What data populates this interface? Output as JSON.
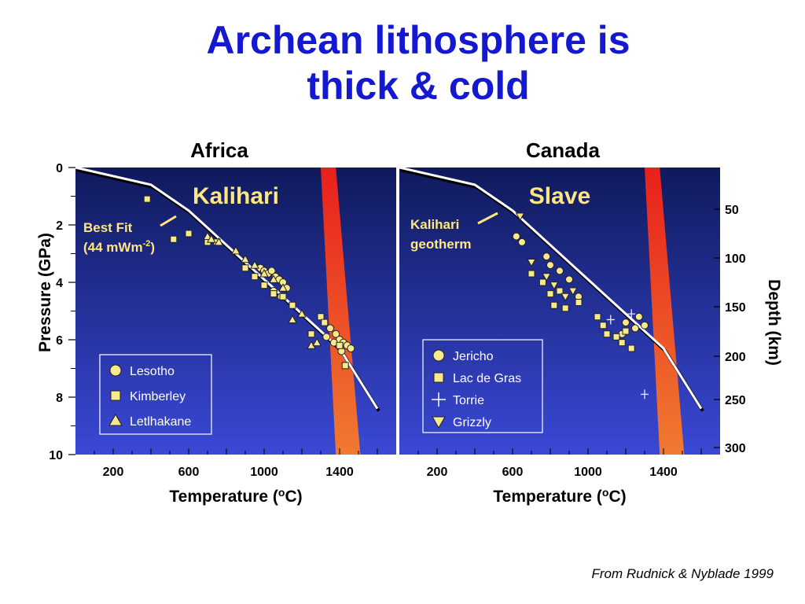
{
  "title_line1": "Archean lithosphere is",
  "title_line2": "thick & cold",
  "citation": "From Rudnick & Nyblade  1999",
  "colors": {
    "title": "#1418d0",
    "panel_top": "#0f1a5c",
    "panel_bottom": "#3a48d6",
    "symbol_fill": "#f7e98e",
    "label_yellow": "#ffe680",
    "melt_band_top": "#e8201c",
    "melt_band_bottom": "#f07a30"
  },
  "chart_data": [
    {
      "type": "scatter",
      "region": "Africa",
      "panel_label": "Kalihari",
      "annotation": [
        "Best Fit",
        "(44 mWm-2)"
      ],
      "xlabel": "Temperature (oC)",
      "ylabel": "Pressure (GPa)",
      "xticks": [
        200,
        600,
        1000,
        1400
      ],
      "yticks": [
        0,
        2,
        4,
        6,
        8,
        10
      ],
      "xlim": [
        0,
        1700
      ],
      "ylim": [
        0,
        10
      ],
      "geotherm": {
        "x": [
          0,
          400,
          600,
          800,
          1000,
          1200,
          1400,
          1600
        ],
        "y": [
          0,
          0.6,
          1.5,
          2.7,
          3.9,
          5.1,
          6.3,
          8.4
        ]
      },
      "melt_band": {
        "x_top": [
          1300,
          1380
        ],
        "x_bottom": [
          1380,
          1510
        ]
      },
      "series": [
        {
          "name": "Lesotho",
          "marker": "circle",
          "x": [
            980,
            1000,
            1020,
            1040,
            1060,
            1080,
            1100,
            1120,
            1000,
            1050,
            1090,
            1350,
            1380,
            1400,
            1420,
            1440,
            1460,
            1330,
            1370,
            1410
          ],
          "y": [
            3.5,
            3.6,
            3.7,
            3.6,
            3.8,
            3.9,
            4.0,
            4.2,
            4.1,
            4.3,
            4.5,
            5.6,
            5.8,
            6.0,
            6.1,
            6.2,
            6.3,
            5.9,
            6.1,
            6.4
          ]
        },
        {
          "name": "Kimberley",
          "marker": "square",
          "x": [
            380,
            520,
            600,
            700,
            750,
            900,
            950,
            1000,
            1050,
            1100,
            1150,
            1300,
            1320,
            1400,
            1430,
            1250
          ],
          "y": [
            1.1,
            2.5,
            2.3,
            2.6,
            2.6,
            3.5,
            3.8,
            4.1,
            4.4,
            4.5,
            4.8,
            5.2,
            5.4,
            6.2,
            6.9,
            5.8
          ]
        },
        {
          "name": "Letlhakane",
          "marker": "triangle",
          "x": [
            700,
            720,
            760,
            850,
            900,
            950,
            1000,
            1050,
            1100,
            1150,
            1200,
            1250,
            1280
          ],
          "y": [
            2.4,
            2.5,
            2.6,
            2.9,
            3.2,
            3.4,
            3.7,
            3.9,
            4.2,
            5.3,
            5.1,
            6.2,
            6.1
          ]
        }
      ]
    },
    {
      "type": "scatter",
      "region": "Canada",
      "panel_label": "Slave",
      "annotation": [
        "Kalihari",
        "geotherm"
      ],
      "xlabel": "Temperature (oC)",
      "ylabel": "Depth (km)",
      "xticks": [
        200,
        600,
        1000,
        1400
      ],
      "yticks": [
        50,
        100,
        150,
        200,
        250,
        300
      ],
      "xlim": [
        0,
        1700
      ],
      "ylim": [
        0,
        10
      ],
      "geotherm": {
        "x": [
          0,
          400,
          600,
          800,
          1000,
          1200,
          1400,
          1600
        ],
        "y": [
          0,
          0.6,
          1.5,
          2.7,
          3.9,
          5.1,
          6.3,
          8.4
        ]
      },
      "melt_band": {
        "x_top": [
          1300,
          1380
        ],
        "x_bottom": [
          1380,
          1510
        ]
      },
      "series": [
        {
          "name": "Jericho",
          "marker": "circle",
          "x": [
            620,
            650,
            780,
            800,
            850,
            900,
            950,
            1200,
            1250,
            1270,
            1300,
            1180
          ],
          "y": [
            2.4,
            2.6,
            3.1,
            3.4,
            3.6,
            3.9,
            4.5,
            5.4,
            5.6,
            5.2,
            5.5,
            5.8
          ]
        },
        {
          "name": "Lac de Gras",
          "marker": "square",
          "x": [
            700,
            760,
            800,
            820,
            850,
            880,
            950,
            1050,
            1080,
            1100,
            1150,
            1180,
            1200,
            1230
          ],
          "y": [
            3.7,
            4.0,
            4.4,
            4.8,
            4.3,
            4.9,
            4.7,
            5.2,
            5.5,
            5.8,
            5.9,
            6.1,
            5.7,
            6.3
          ]
        },
        {
          "name": "Torrie",
          "marker": "cross",
          "x": [
            1120,
            1230,
            1300
          ],
          "y": [
            5.3,
            5.1,
            7.9
          ]
        },
        {
          "name": "Grizzly",
          "marker": "triangle-down",
          "x": [
            640,
            700,
            780,
            820,
            880,
            920
          ],
          "y": [
            1.7,
            3.3,
            3.8,
            4.1,
            4.5,
            4.3
          ]
        }
      ]
    }
  ]
}
